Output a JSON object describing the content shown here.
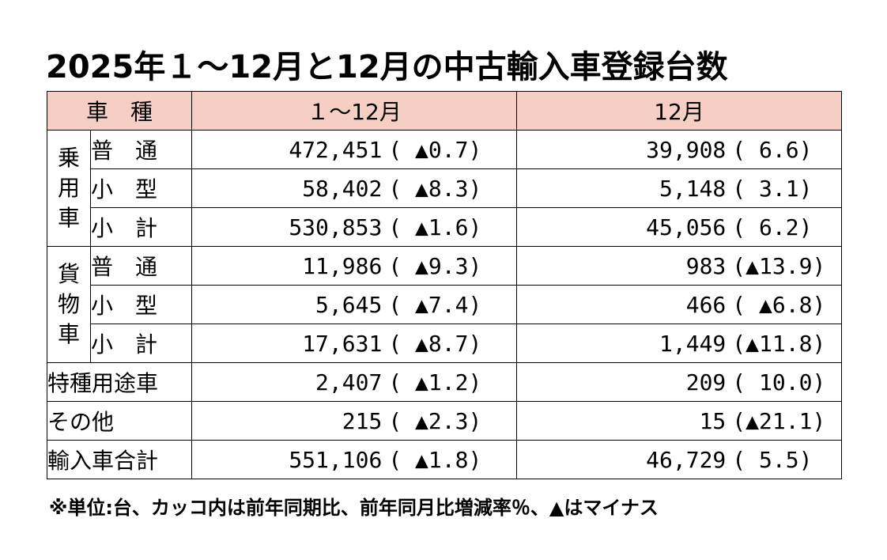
{
  "title": "2025年１～12月と12月の中古輸入車登録台数",
  "header": {
    "category": "車　種",
    "col1": "１～12月",
    "col2": "12月"
  },
  "groups": {
    "passenger": "乗用車",
    "cargo": "貨物車"
  },
  "rows": [
    {
      "label": "普　通",
      "jan_dec": "472,451",
      "jan_dec_change": "( ▲0.7)",
      "dec": "39,908",
      "dec_change": "(   6.6)"
    },
    {
      "label": "小　型",
      "jan_dec": "58,402",
      "jan_dec_change": "( ▲8.3)",
      "dec": "5,148",
      "dec_change": "(   3.1)"
    },
    {
      "label": "小　計",
      "jan_dec": "530,853",
      "jan_dec_change": "( ▲1.6)",
      "dec": "45,056",
      "dec_change": "(   6.2)"
    },
    {
      "label": "普　通",
      "jan_dec": "11,986",
      "jan_dec_change": "( ▲9.3)",
      "dec": "983",
      "dec_change": "(▲13.9)"
    },
    {
      "label": "小　型",
      "jan_dec": "5,645",
      "jan_dec_change": "( ▲7.4)",
      "dec": "466",
      "dec_change": "( ▲6.8)"
    },
    {
      "label": "小　計",
      "jan_dec": "17,631",
      "jan_dec_change": "( ▲8.7)",
      "dec": "1,449",
      "dec_change": "(▲11.8)"
    },
    {
      "label": "特種用途車",
      "jan_dec": "2,407",
      "jan_dec_change": "( ▲1.2)",
      "dec": "209",
      "dec_change": "(  10.0)"
    },
    {
      "label": "その他",
      "jan_dec": "215",
      "jan_dec_change": "( ▲2.3)",
      "dec": "15",
      "dec_change": "(▲21.1)"
    },
    {
      "label": "輸入車合計",
      "jan_dec": "551,106",
      "jan_dec_change": "( ▲1.8)",
      "dec": "46,729",
      "dec_change": "(   5.5)"
    }
  ],
  "note": "※単位:台、カッコ内は前年同期比、前年同月比増減率％、▲はマイナス"
}
